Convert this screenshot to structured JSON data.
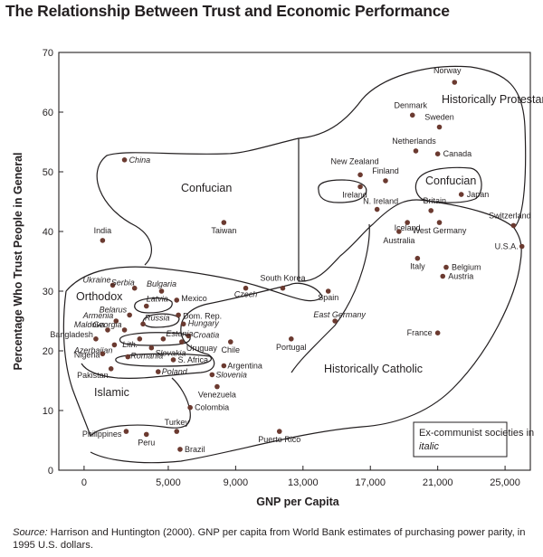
{
  "page": {
    "title": "The Relationship Between Trust and Economic Performance",
    "source_label": "Source:",
    "source_text": "Harrison and Huntington (2000). GNP per capita from World Bank estimates of purchasing power parity, in 1995 U.S. dollars."
  },
  "chart_data": {
    "type": "scatter",
    "title": "The Relationship Between Trust and Economic Performance",
    "xlabel": "GNP per Capita",
    "ylabel": "Percentage Who Trust People in General",
    "xlim": [
      -1500,
      26500
    ],
    "ylim": [
      0,
      70
    ],
    "xticks": [
      0,
      5000,
      9000,
      13000,
      17000,
      21000,
      25000
    ],
    "xtick_labels": [
      "0",
      "5,000",
      "9,000",
      "13,000",
      "17,000",
      "21,000",
      "25,000"
    ],
    "yticks": [
      0,
      10,
      20,
      30,
      40,
      50,
      60,
      70
    ],
    "ytick_labels": [
      "0",
      "10",
      "20",
      "30",
      "40",
      "50",
      "60",
      "70"
    ],
    "points": [
      {
        "name": "Norway",
        "x": 22000,
        "y": 65,
        "italic": false
      },
      {
        "name": "Denmark",
        "x": 19500,
        "y": 59.5,
        "italic": false
      },
      {
        "name": "Sweden",
        "x": 21100,
        "y": 57.5,
        "italic": false
      },
      {
        "name": "Netherlands",
        "x": 19700,
        "y": 53.5,
        "italic": false
      },
      {
        "name": "Canada",
        "x": 21000,
        "y": 53,
        "italic": false
      },
      {
        "name": "New Zealand",
        "x": 16400,
        "y": 49.5,
        "italic": false
      },
      {
        "name": "Finland",
        "x": 17900,
        "y": 48.5,
        "italic": false
      },
      {
        "name": "Ireland",
        "x": 16400,
        "y": 47.5,
        "italic": false
      },
      {
        "name": "Japan",
        "x": 22400,
        "y": 46.2,
        "italic": false
      },
      {
        "name": "N. Ireland",
        "x": 17400,
        "y": 43.7,
        "italic": false
      },
      {
        "name": "Britain",
        "x": 20600,
        "y": 43.5,
        "italic": false
      },
      {
        "name": "Iceland",
        "x": 19200,
        "y": 41.5,
        "italic": false
      },
      {
        "name": "West Germany",
        "x": 21100,
        "y": 41.5,
        "italic": false
      },
      {
        "name": "Australia",
        "x": 18700,
        "y": 40,
        "italic": false
      },
      {
        "name": "Switzerland",
        "x": 25500,
        "y": 41,
        "italic": false
      },
      {
        "name": "U.S.A.",
        "x": 26000,
        "y": 37.5,
        "italic": false
      },
      {
        "name": "Italy",
        "x": 19800,
        "y": 35.5,
        "italic": false
      },
      {
        "name": "Belgium",
        "x": 21500,
        "y": 34,
        "italic": false
      },
      {
        "name": "Austria",
        "x": 21300,
        "y": 32.5,
        "italic": false
      },
      {
        "name": "France",
        "x": 21000,
        "y": 23,
        "italic": false
      },
      {
        "name": "China",
        "x": 2400,
        "y": 52,
        "italic": true
      },
      {
        "name": "Taiwan",
        "x": 8300,
        "y": 41.5,
        "italic": false
      },
      {
        "name": "India",
        "x": 1100,
        "y": 38.5,
        "italic": false
      },
      {
        "name": "South Korea",
        "x": 11800,
        "y": 30.5,
        "italic": false
      },
      {
        "name": "Czech",
        "x": 9600,
        "y": 30.5,
        "italic": true
      },
      {
        "name": "Spain",
        "x": 14500,
        "y": 30,
        "italic": false
      },
      {
        "name": "East Germany",
        "x": 14900,
        "y": 25,
        "italic": true
      },
      {
        "name": "Portugal",
        "x": 12300,
        "y": 22,
        "italic": false
      },
      {
        "name": "Ukraine",
        "x": 1700,
        "y": 31,
        "italic": true
      },
      {
        "name": "Serbia",
        "x": 3000,
        "y": 30.5,
        "italic": true
      },
      {
        "name": "Bulgaria",
        "x": 4600,
        "y": 30,
        "italic": true
      },
      {
        "name": "Mexico",
        "x": 5500,
        "y": 28.5,
        "italic": false
      },
      {
        "name": "Latvia",
        "x": 3700,
        "y": 27.5,
        "italic": true
      },
      {
        "name": "Belarus",
        "x": 2700,
        "y": 26,
        "italic": true
      },
      {
        "name": "Dom. Rep.",
        "x": 5600,
        "y": 26,
        "italic": false
      },
      {
        "name": "Armenia",
        "x": 1900,
        "y": 25,
        "italic": true
      },
      {
        "name": "Russia",
        "x": 3500,
        "y": 24.5,
        "italic": true
      },
      {
        "name": "Hungary",
        "x": 5900,
        "y": 24.5,
        "italic": true
      },
      {
        "name": "Maldova",
        "x": 1400,
        "y": 23.5,
        "italic": true
      },
      {
        "name": "Georgia",
        "x": 2400,
        "y": 23.5,
        "italic": true
      },
      {
        "name": "Croatia",
        "x": 6200,
        "y": 22.5,
        "italic": true
      },
      {
        "name": "Bangladesh",
        "x": 700,
        "y": 22,
        "italic": false
      },
      {
        "name": "Lith.",
        "x": 3300,
        "y": 22,
        "italic": true
      },
      {
        "name": "Estonia",
        "x": 4700,
        "y": 22,
        "italic": true
      },
      {
        "name": "Uruguay",
        "x": 5800,
        "y": 21.5,
        "italic": false
      },
      {
        "name": "Azerbaijan",
        "x": 1800,
        "y": 21,
        "italic": true
      },
      {
        "name": "Slovakia",
        "x": 4000,
        "y": 20.5,
        "italic": true
      },
      {
        "name": "Chile",
        "x": 8700,
        "y": 21.5,
        "italic": false
      },
      {
        "name": "Nigeria",
        "x": 1100,
        "y": 19.5,
        "italic": false
      },
      {
        "name": "Romania",
        "x": 2600,
        "y": 19,
        "italic": true
      },
      {
        "name": "S. Africa",
        "x": 5300,
        "y": 18.5,
        "italic": false
      },
      {
        "name": "Argentina",
        "x": 8300,
        "y": 17.5,
        "italic": false
      },
      {
        "name": "Pakistan",
        "x": 1600,
        "y": 17,
        "italic": false
      },
      {
        "name": "Poland",
        "x": 4400,
        "y": 16.5,
        "italic": true
      },
      {
        "name": "Slovenia",
        "x": 7600,
        "y": 16,
        "italic": true
      },
      {
        "name": "Venezuela",
        "x": 7900,
        "y": 14,
        "italic": false
      },
      {
        "name": "Colombia",
        "x": 6300,
        "y": 10.5,
        "italic": false
      },
      {
        "name": "Turkey",
        "x": 5500,
        "y": 6.5,
        "italic": false
      },
      {
        "name": "Philippines",
        "x": 2500,
        "y": 6.5,
        "italic": false
      },
      {
        "name": "Peru",
        "x": 3700,
        "y": 6,
        "italic": false
      },
      {
        "name": "Brazil",
        "x": 5700,
        "y": 3.5,
        "italic": false
      },
      {
        "name": "Puerto Rico",
        "x": 11600,
        "y": 6.5,
        "italic": false
      }
    ],
    "regions": [
      "Historically Protestant",
      "Confucian",
      "Confucian",
      "Orthodox",
      "Islamic",
      "Historically Catholic"
    ],
    "legend_text": "Ex-communist societies in",
    "legend_italic": "italic"
  }
}
